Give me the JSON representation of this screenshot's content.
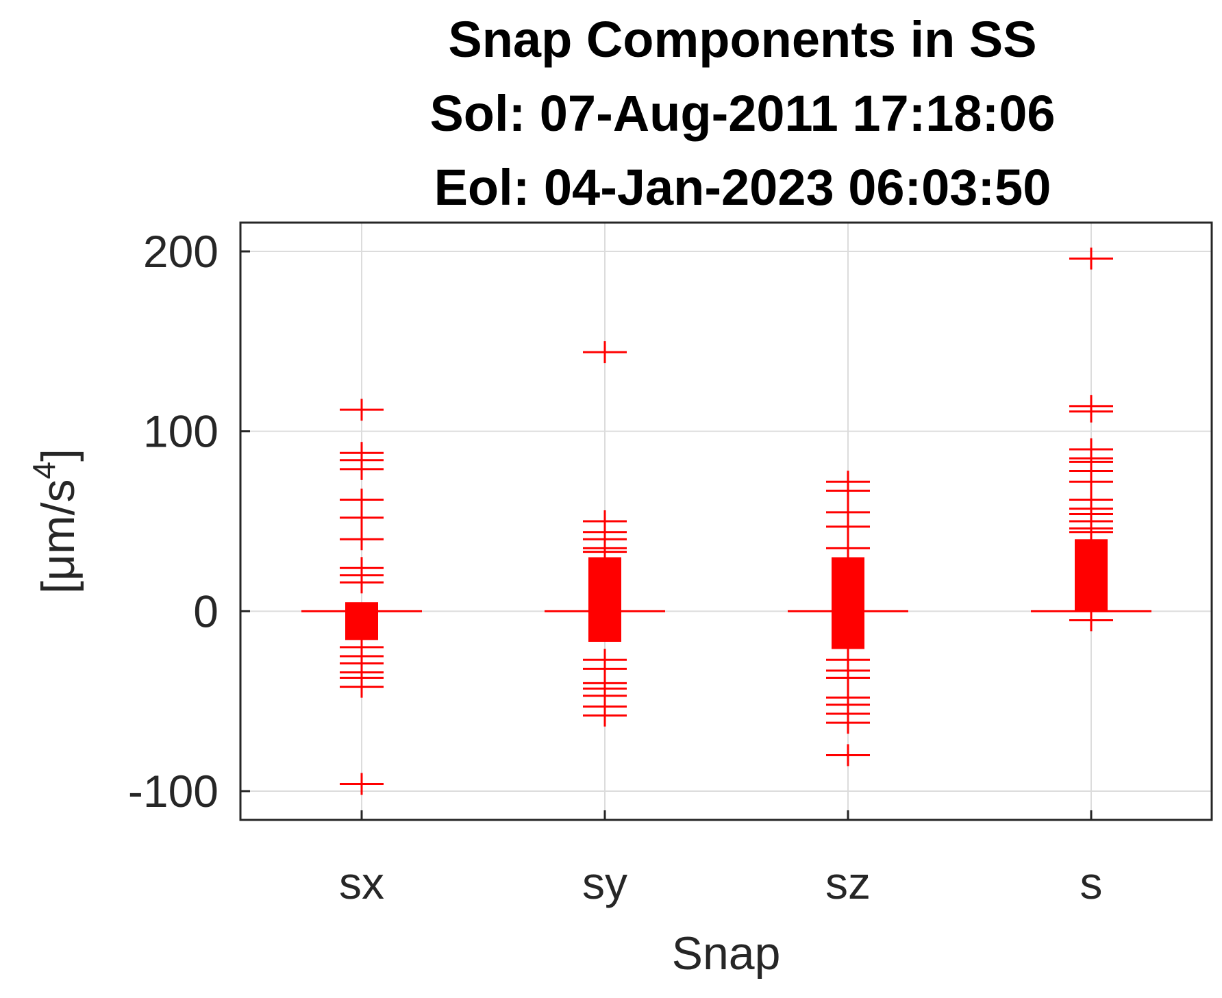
{
  "chart_data": {
    "type": "scatter",
    "title_lines": [
      "Snap Components in SS",
      "Sol: 07-Aug-2011 17:18:06",
      "Eol: 04-Jan-2023 06:03:50"
    ],
    "xlabel": "Snap",
    "ylabel_main": "[μm/s",
    "ylabel_sup": "4",
    "ylabel_close": "]",
    "categories": [
      "sx",
      "sy",
      "sz",
      "s"
    ],
    "yticks": [
      "-100",
      "0",
      "100",
      "200"
    ],
    "ytick_values": [
      -100,
      0,
      100,
      200
    ],
    "ylim": [
      -116,
      216
    ],
    "grid": true,
    "colors": {
      "marker": "#ff0000",
      "grid": "#dcdcdc",
      "axes": "#262626"
    },
    "whisker_value": 0,
    "series": [
      {
        "category": "sx",
        "dense_range": [
          -16,
          5
        ],
        "outliers": [
          112,
          88,
          84,
          79,
          62,
          52,
          40,
          24,
          20,
          16,
          -20,
          -25,
          -29,
          -34,
          -37,
          -42,
          -96
        ]
      },
      {
        "category": "sy",
        "dense_range": [
          -17,
          30
        ],
        "outliers": [
          144,
          50,
          44,
          40,
          35,
          33,
          -27,
          -32,
          -40,
          -43,
          -47,
          -53,
          -58
        ]
      },
      {
        "category": "sz",
        "dense_range": [
          -21,
          30
        ],
        "outliers": [
          72,
          67,
          55,
          47,
          35,
          -27,
          -33,
          -37,
          -48,
          -52,
          -57,
          -62,
          -80
        ]
      },
      {
        "category": "s",
        "dense_range": [
          0,
          40
        ],
        "outliers": [
          196,
          114,
          111,
          90,
          85,
          83,
          78,
          72,
          62,
          57,
          54,
          50,
          46,
          44,
          -5
        ]
      }
    ]
  }
}
